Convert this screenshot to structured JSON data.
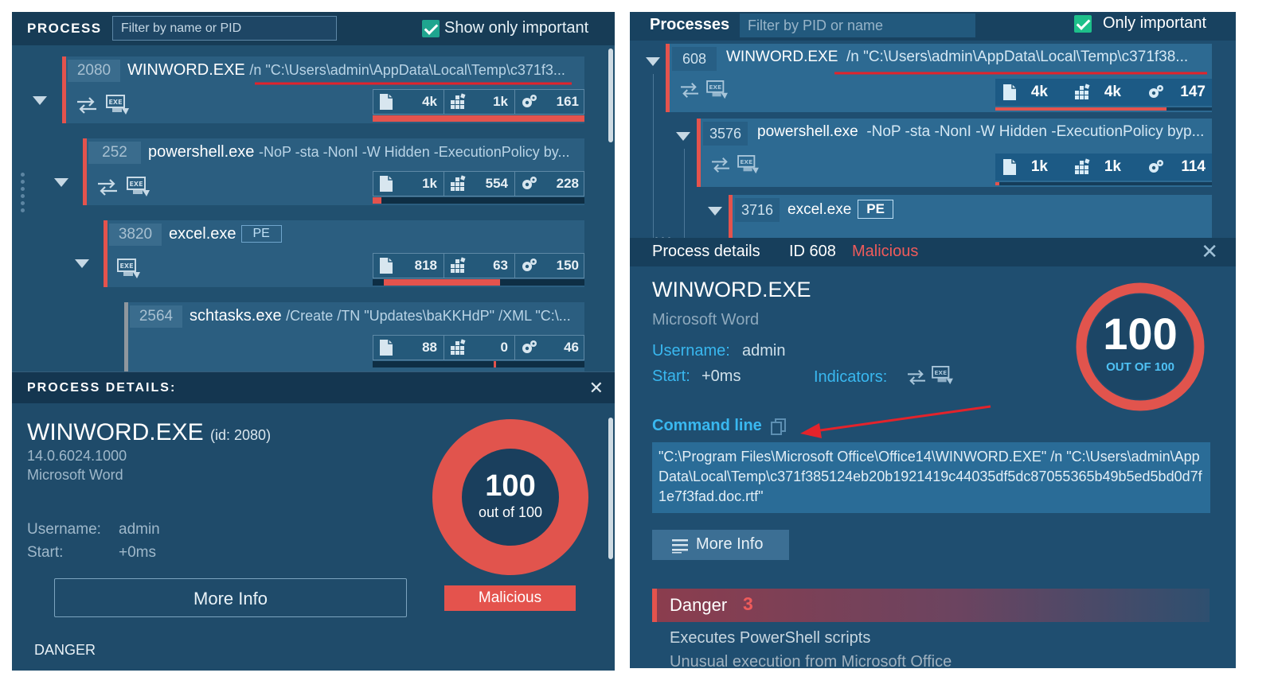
{
  "left": {
    "header": {
      "title": "PROCESS",
      "filter_placeholder": "Filter by name or PID",
      "show_only_important": "Show only important"
    },
    "processes": [
      {
        "pid": "2080",
        "name": "WINWORD.EXE",
        "args": "/n \"C:\\Users\\admin\\AppData\\Local\\Temp\\c371f3...",
        "files": "4k",
        "registry": "1k",
        "modules": "161",
        "progress": 1.0
      },
      {
        "pid": "252",
        "name": "powershell.exe",
        "args": "-NoP -sta -NonI -W Hidden -ExecutionPolicy by...",
        "files": "1k",
        "registry": "554",
        "modules": "228",
        "progress": 0.04
      },
      {
        "pid": "3820",
        "name": "excel.exe",
        "badge": "PE",
        "files": "818",
        "registry": "63",
        "modules": "150",
        "progress": 0.58
      },
      {
        "pid": "2564",
        "name": "schtasks.exe",
        "args": "/Create /TN \"Updates\\baKKHdP\" /XML \"C:\\...",
        "files": "88",
        "registry": "0",
        "modules": "46",
        "progress": 0.58
      }
    ],
    "details": {
      "header": "PROCESS DETAILS:",
      "name": "WINWORD.EXE",
      "id": "(id: 2080)",
      "version": "14.0.6024.1000",
      "description": "Microsoft Word",
      "username_label": "Username:",
      "username": "admin",
      "start_label": "Start:",
      "start": "+0ms",
      "score": "100",
      "score_sub": "out of 100",
      "score_value": 100,
      "more_info": "More Info",
      "verdict": "Malicious",
      "danger": "DANGER"
    }
  },
  "right": {
    "header": {
      "title": "Processes",
      "filter_placeholder": "Filter by PID or name",
      "only_important": "Only important"
    },
    "processes": [
      {
        "pid": "608",
        "name": "WINWORD.EXE",
        "args": "/n \"C:\\Users\\admin\\AppData\\Local\\Temp\\c371f38...",
        "files": "4k",
        "registry": "4k",
        "modules": "147",
        "progress": 0.79
      },
      {
        "pid": "3576",
        "name": "powershell.exe",
        "args": "-NoP -sta -NonI -W Hidden -ExecutionPolicy byp...",
        "files": "1k",
        "registry": "1k",
        "modules": "114",
        "progress": 0.02
      },
      {
        "pid": "3716",
        "name": "excel.exe",
        "badge": "PE"
      }
    ],
    "details": {
      "header": "Process details",
      "id": "ID 608",
      "verdict": "Malicious",
      "name": "WINWORD.EXE",
      "description": "Microsoft Word",
      "username_label": "Username:",
      "username": "admin",
      "start_label": "Start:",
      "start": "+0ms",
      "indicators_label": "Indicators:",
      "score": "100",
      "score_sub": "OUT OF 100",
      "score_value": 100,
      "command_line_label": "Command line",
      "command_line": "\"C:\\Program Files\\Microsoft Office\\Office14\\WINWORD.EXE\" /n \"C:\\Users\\admin\\AppData\\Local\\Temp\\c371f385124eb20b1921419c44035df5dc87055365b49b5ed5bd0d7f1e7f3fad.doc.rtf\"",
      "more_info": "More Info",
      "danger_label": "Danger",
      "danger_count": "3",
      "danger_items": [
        "Executes PowerShell scripts",
        "Unusual execution from Microsoft Office"
      ]
    }
  },
  "colors": {
    "accent_red": "#e4534d",
    "accent_blue": "#39b8f0",
    "panel_left": "#1f4b6a",
    "panel_right": "#1f4e70"
  },
  "icons": [
    "file-icon",
    "registry-icon",
    "modules-gear-icon",
    "network-arrows-icon",
    "exe-icon",
    "copy-icon",
    "close-icon",
    "hamburger-icon",
    "checkbox-icon",
    "collapse-triangle-icon"
  ]
}
